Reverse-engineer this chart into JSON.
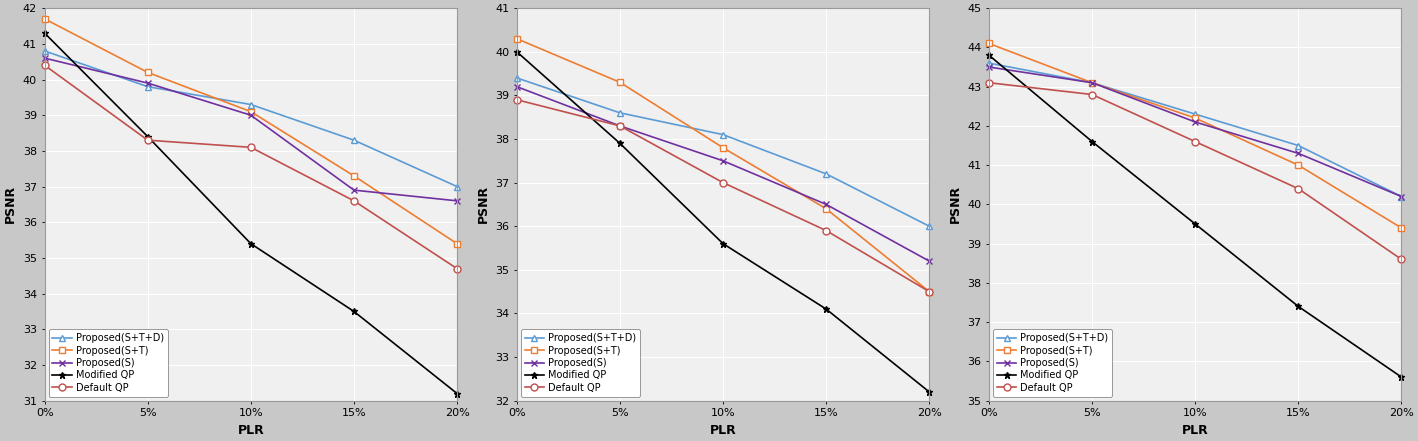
{
  "plr_x": [
    0,
    5,
    10,
    15,
    20
  ],
  "plr_labels": [
    "0%",
    "5%",
    "10%",
    "15%",
    "20%"
  ],
  "charts": [
    {
      "ylabel": "PSNR",
      "xlabel": "PLR",
      "ylim": [
        31,
        42
      ],
      "yticks": [
        31,
        32,
        33,
        34,
        35,
        36,
        37,
        38,
        39,
        40,
        41,
        42
      ],
      "series": [
        {
          "label": "Proposed(S+T+D)",
          "color": "#5B9BD5",
          "marker": "^",
          "marker_face": "white",
          "values": [
            40.8,
            39.8,
            39.3,
            38.3,
            37.0
          ]
        },
        {
          "label": "Proposed(S+T)",
          "color": "#ED7D31",
          "marker": "s",
          "marker_face": "white",
          "values": [
            41.7,
            40.2,
            39.1,
            37.3,
            35.4
          ]
        },
        {
          "label": "Proposed(S)",
          "color": "#7030A0",
          "marker": "x",
          "marker_face": "auto",
          "values": [
            40.6,
            39.9,
            39.0,
            36.9,
            36.6
          ]
        },
        {
          "label": "Modified QP",
          "color": "#000000",
          "marker": "*",
          "marker_face": "auto",
          "values": [
            41.3,
            38.4,
            35.4,
            33.5,
            31.2
          ]
        },
        {
          "label": "Default QP",
          "color": "#C0504D",
          "marker": "o",
          "marker_face": "white",
          "values": [
            40.4,
            38.3,
            38.1,
            36.6,
            34.7
          ]
        }
      ]
    },
    {
      "ylabel": "PSNR",
      "xlabel": "PLR",
      "ylim": [
        32,
        41
      ],
      "yticks": [
        32,
        33,
        34,
        35,
        36,
        37,
        38,
        39,
        40,
        41
      ],
      "series": [
        {
          "label": "Proposed(S+T+D)",
          "color": "#5B9BD5",
          "marker": "^",
          "marker_face": "white",
          "values": [
            39.4,
            38.6,
            38.1,
            37.2,
            36.0
          ]
        },
        {
          "label": "Proposed(S+T)",
          "color": "#ED7D31",
          "marker": "s",
          "marker_face": "white",
          "values": [
            40.3,
            39.3,
            37.8,
            36.4,
            34.5
          ]
        },
        {
          "label": "Proposed(S)",
          "color": "#7030A0",
          "marker": "x",
          "marker_face": "auto",
          "values": [
            39.2,
            38.3,
            37.5,
            36.5,
            35.2
          ]
        },
        {
          "label": "Modified QP",
          "color": "#000000",
          "marker": "*",
          "marker_face": "auto",
          "values": [
            40.0,
            37.9,
            35.6,
            34.1,
            32.2
          ]
        },
        {
          "label": "Default QP",
          "color": "#C0504D",
          "marker": "o",
          "marker_face": "white",
          "values": [
            38.9,
            38.3,
            37.0,
            35.9,
            34.5
          ]
        }
      ]
    },
    {
      "ylabel": "PSNR",
      "xlabel": "PLR",
      "ylim": [
        35,
        45
      ],
      "yticks": [
        35,
        36,
        37,
        38,
        39,
        40,
        41,
        42,
        43,
        44,
        45
      ],
      "series": [
        {
          "label": "Proposed(S+T+D)",
          "color": "#5B9BD5",
          "marker": "^",
          "marker_face": "white",
          "values": [
            43.6,
            43.1,
            42.3,
            41.5,
            40.2
          ]
        },
        {
          "label": "Proposed(S+T)",
          "color": "#ED7D31",
          "marker": "s",
          "marker_face": "white",
          "values": [
            44.1,
            43.1,
            42.2,
            41.0,
            39.4
          ]
        },
        {
          "label": "Proposed(S)",
          "color": "#7030A0",
          "marker": "x",
          "marker_face": "auto",
          "values": [
            43.5,
            43.1,
            42.1,
            41.3,
            40.2
          ]
        },
        {
          "label": "Modified QP",
          "color": "#000000",
          "marker": "*",
          "marker_face": "auto",
          "values": [
            43.8,
            41.6,
            39.5,
            37.4,
            35.6
          ]
        },
        {
          "label": "Default QP",
          "color": "#C0504D",
          "marker": "o",
          "marker_face": "white",
          "values": [
            43.1,
            42.8,
            41.6,
            40.4,
            38.6
          ]
        }
      ]
    }
  ],
  "legend_loc": "lower left",
  "plot_bg": "#F0F0F0",
  "fig_bg": "#C8C8C8",
  "grid_color": "#FFFFFF",
  "font_size": 8,
  "linewidth": 1.2,
  "markersize": 5
}
